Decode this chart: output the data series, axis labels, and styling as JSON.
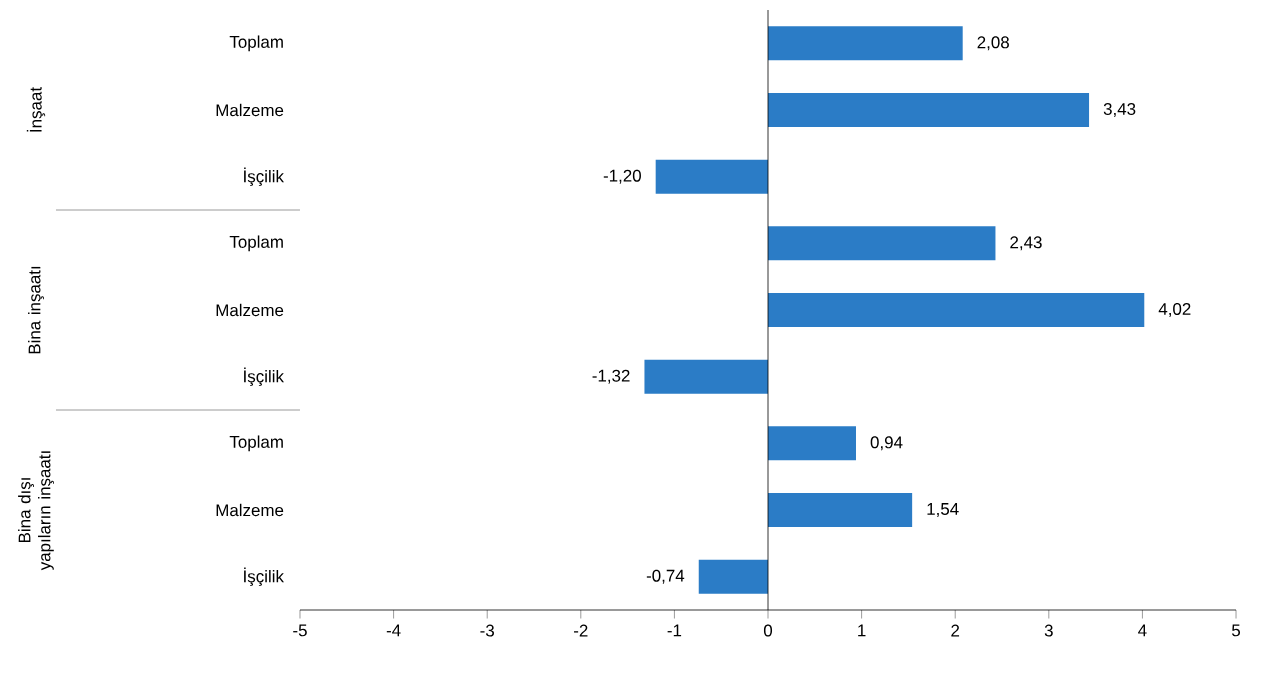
{
  "chart_data": {
    "type": "bar",
    "orientation": "horizontal",
    "categories": [
      "Toplam",
      "Malzeme",
      "İşçilik",
      "Toplam",
      "Malzeme",
      "İşçilik",
      "Toplam",
      "Malzeme",
      "İşçilik"
    ],
    "values": [
      2.08,
      3.43,
      -1.2,
      2.43,
      4.02,
      -1.32,
      0.94,
      1.54,
      -0.74
    ],
    "value_labels": [
      "2,08",
      "3,43",
      "-1,20",
      "2,43",
      "4,02",
      "-1,32",
      "0,94",
      "1,54",
      "-0,74"
    ],
    "color": "#2b7cc6",
    "xlim": [
      -5,
      5
    ],
    "xticks": [
      -5,
      -4,
      -3,
      -2,
      -1,
      0,
      1,
      2,
      3,
      4,
      5
    ],
    "annotations": [
      "İnşaat",
      "Bina inşaatı",
      "Bina dışı yapıların inşaatı"
    ]
  }
}
